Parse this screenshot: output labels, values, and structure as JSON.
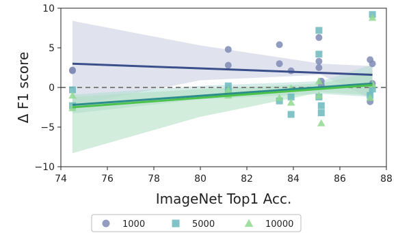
{
  "chart_data": {
    "type": "scatter",
    "title": "",
    "xlabel": "ImageNet Top1 Acc.",
    "ylabel": "Δ F1 score",
    "xlim": [
      74,
      88
    ],
    "ylim": [
      -10,
      10
    ],
    "xticks": [
      74,
      76,
      78,
      80,
      82,
      84,
      86,
      88
    ],
    "yticks": [
      -10,
      -5,
      0,
      5,
      10
    ],
    "reference_line": {
      "y": 0,
      "style": "dashed",
      "color": "#808080"
    },
    "legend_position": "bottom-center",
    "series": [
      {
        "name": "1000",
        "marker": "circle",
        "color": "#7F8BB5",
        "line_color": "#3A4E8A",
        "band_color": "#C7CCE0",
        "points": [
          [
            74.5,
            2.2
          ],
          [
            74.5,
            2.1
          ],
          [
            81.2,
            4.8
          ],
          [
            81.2,
            2.8
          ],
          [
            83.4,
            5.4
          ],
          [
            83.4,
            3.0
          ],
          [
            83.9,
            2.1
          ],
          [
            85.1,
            6.3
          ],
          [
            85.1,
            3.3
          ],
          [
            85.1,
            2.5
          ],
          [
            85.2,
            0.8
          ],
          [
            85.2,
            0.3
          ],
          [
            87.3,
            3.5
          ],
          [
            87.4,
            3.0
          ],
          [
            87.4,
            0.5
          ],
          [
            87.3,
            -1.8
          ]
        ],
        "fit": {
          "x": [
            74.5,
            87.4
          ],
          "y": [
            3.0,
            1.6
          ]
        },
        "band": {
          "x": [
            74.5,
            80,
            85.2,
            87.4
          ],
          "upper": [
            8.4,
            5.3,
            3.0,
            2.7
          ],
          "lower": [
            -2.3,
            0.9,
            1.6,
            -1.5
          ]
        }
      },
      {
        "name": "5000",
        "marker": "square",
        "color": "#6BB9BD",
        "line_color": "#2C8C8C",
        "band_color": "#B4DDD5",
        "points": [
          [
            74.5,
            -0.3
          ],
          [
            74.5,
            -2.3
          ],
          [
            81.2,
            0.2
          ],
          [
            81.2,
            -0.6
          ],
          [
            83.4,
            -1.7
          ],
          [
            83.9,
            -3.4
          ],
          [
            83.9,
            -1.2
          ],
          [
            85.1,
            7.2
          ],
          [
            85.1,
            4.2
          ],
          [
            85.1,
            -1.2
          ],
          [
            85.2,
            -2.3
          ],
          [
            85.2,
            -3.2
          ],
          [
            87.4,
            9.2
          ],
          [
            87.4,
            -0.2
          ],
          [
            87.3,
            -1.0
          ]
        ],
        "fit": {
          "x": [
            74.5,
            87.4
          ],
          "y": [
            -2.2,
            0.5
          ]
        },
        "band": {
          "x": [
            74.5,
            80,
            85.2,
            87.4
          ],
          "upper": [
            -0.9,
            0.2,
            0.8,
            2.9
          ],
          "lower": [
            -3.3,
            -1.5,
            -0.8,
            -1.2
          ]
        }
      },
      {
        "name": "10000",
        "marker": "triangle",
        "color": "#8FD98F",
        "line_color": "#4CC24C",
        "band_color": "#AEDFBF",
        "points": [
          [
            74.5,
            -1.0
          ],
          [
            74.5,
            -2.6
          ],
          [
            81.2,
            -0.3
          ],
          [
            81.2,
            -1.0
          ],
          [
            83.4,
            -1.3
          ],
          [
            83.9,
            -0.1
          ],
          [
            83.9,
            -1.9
          ],
          [
            85.1,
            0.8
          ],
          [
            85.1,
            -1.0
          ],
          [
            85.2,
            -4.5
          ],
          [
            87.4,
            8.8
          ],
          [
            87.4,
            0.4
          ],
          [
            87.3,
            -1.3
          ]
        ],
        "fit": {
          "x": [
            74.5,
            87.4
          ],
          "y": [
            -2.5,
            0.3
          ]
        },
        "band": {
          "x": [
            74.5,
            80,
            85.2,
            87.4
          ],
          "upper": [
            -1.2,
            -0.2,
            0.5,
            2.0
          ],
          "lower": [
            -8.3,
            -3.7,
            -0.6,
            -1.0
          ]
        }
      }
    ]
  }
}
